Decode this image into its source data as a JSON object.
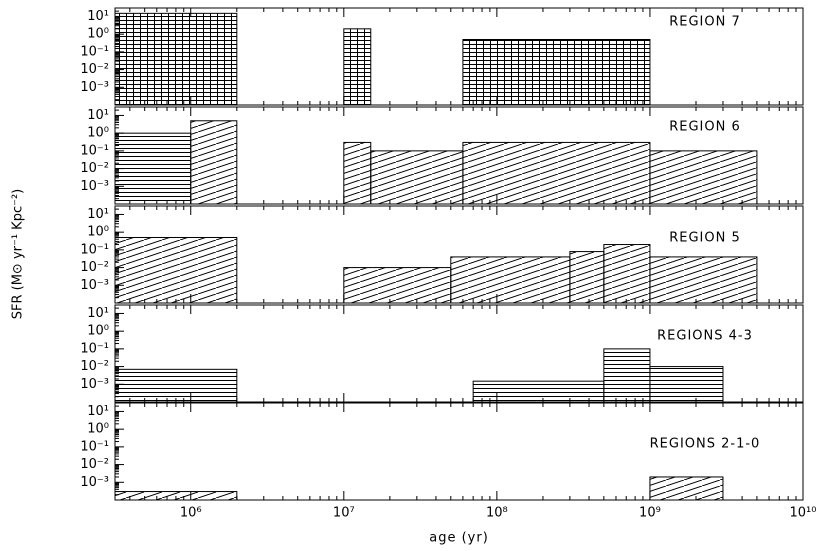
{
  "chart_data": [
    {
      "type": "bar",
      "title": "REGION 7",
      "xscale": "log",
      "yscale": "log",
      "xlim": [
        320000,
        10000000000
      ],
      "ylim": [
        0.0001,
        30
      ],
      "xticks": [
        1000000,
        10000000,
        100000000,
        1000000000,
        10000000000
      ],
      "yticks": [
        {
          "value": 10,
          "label": "10¹"
        },
        {
          "value": 1,
          "label": "10⁰"
        },
        {
          "value": 0.1,
          "label": "10⁻¹"
        },
        {
          "value": 0.01,
          "label": "10⁻²"
        },
        {
          "value": 0.001,
          "label": "10⁻³"
        }
      ],
      "bars": [
        {
          "from": 320000,
          "to": 2000000,
          "value": 15,
          "hatch": "grid"
        },
        {
          "from": 10000000,
          "to": 15000000,
          "value": 2,
          "hatch": "grid"
        },
        {
          "from": 60000000,
          "to": 1000000000,
          "value": 0.5,
          "hatch": "grid"
        }
      ]
    },
    {
      "type": "bar",
      "title": "REGION 6",
      "xscale": "log",
      "yscale": "log",
      "xlim": [
        320000,
        10000000000
      ],
      "ylim": [
        0.0001,
        30
      ],
      "xticks": [
        1000000,
        10000000,
        100000000,
        1000000000,
        10000000000
      ],
      "yticks": [
        {
          "value": 10,
          "label": "10¹"
        },
        {
          "value": 1,
          "label": "10⁰"
        },
        {
          "value": 0.1,
          "label": "10⁻¹"
        },
        {
          "value": 0.01,
          "label": "10⁻²"
        },
        {
          "value": 0.001,
          "label": "10⁻³"
        }
      ],
      "bars": [
        {
          "from": 320000,
          "to": 1000000,
          "value": 1,
          "hatch": "horizontal"
        },
        {
          "from": 1000000,
          "to": 2000000,
          "value": 5,
          "hatch": "diagonal"
        },
        {
          "from": 10000000,
          "to": 15000000,
          "value": 0.3,
          "hatch": "diagonal"
        },
        {
          "from": 15000000,
          "to": 60000000,
          "value": 0.1,
          "hatch": "diagonal"
        },
        {
          "from": 60000000,
          "to": 1000000000,
          "value": 0.3,
          "hatch": "diagonal"
        },
        {
          "from": 1000000000,
          "to": 5000000000,
          "value": 0.1,
          "hatch": "diagonal"
        }
      ]
    },
    {
      "type": "bar",
      "title": "REGION 5",
      "ylabel": "SFR (M⊙ yr⁻¹ Kpc⁻²)",
      "xscale": "log",
      "yscale": "log",
      "xlim": [
        320000,
        10000000000
      ],
      "ylim": [
        0.0001,
        30
      ],
      "xticks": [
        1000000,
        10000000,
        100000000,
        1000000000,
        10000000000
      ],
      "yticks": [
        {
          "value": 10,
          "label": "10¹"
        },
        {
          "value": 1,
          "label": "10⁰"
        },
        {
          "value": 0.1,
          "label": "10⁻¹"
        },
        {
          "value": 0.01,
          "label": "10⁻²"
        },
        {
          "value": 0.001,
          "label": "10⁻³"
        }
      ],
      "bars": [
        {
          "from": 320000,
          "to": 2000000,
          "value": 0.5,
          "hatch": "diagonal"
        },
        {
          "from": 10000000,
          "to": 50000000,
          "value": 0.01,
          "hatch": "diagonal"
        },
        {
          "from": 50000000,
          "to": 300000000,
          "value": 0.04,
          "hatch": "diagonal"
        },
        {
          "from": 300000000,
          "to": 500000000,
          "value": 0.08,
          "hatch": "diagonal"
        },
        {
          "from": 500000000,
          "to": 1000000000,
          "value": 0.2,
          "hatch": "diagonal"
        },
        {
          "from": 1000000000,
          "to": 5000000000,
          "value": 0.04,
          "hatch": "diagonal"
        }
      ]
    },
    {
      "type": "bar",
      "title": "REGIONS 4-3",
      "xscale": "log",
      "yscale": "log",
      "xlim": [
        320000,
        10000000000
      ],
      "ylim": [
        0.0001,
        30
      ],
      "xticks": [
        1000000,
        10000000,
        100000000,
        1000000000,
        10000000000
      ],
      "yticks": [
        {
          "value": 10,
          "label": "10¹"
        },
        {
          "value": 1,
          "label": "10⁰"
        },
        {
          "value": 0.1,
          "label": "10⁻¹"
        },
        {
          "value": 0.01,
          "label": "10⁻²"
        },
        {
          "value": 0.001,
          "label": "10⁻³"
        }
      ],
      "bars": [
        {
          "from": 320000,
          "to": 2000000,
          "value": 0.007,
          "hatch": "horizontal"
        },
        {
          "from": 70000000,
          "to": 500000000,
          "value": 0.0015,
          "hatch": "horizontal"
        },
        {
          "from": 500000000,
          "to": 1000000000,
          "value": 0.1,
          "hatch": "horizontal"
        },
        {
          "from": 1000000000,
          "to": 3000000000,
          "value": 0.01,
          "hatch": "horizontal"
        }
      ]
    },
    {
      "type": "bar",
      "title": "REGIONS 2-1-0",
      "xlabel": "age (yr)",
      "xscale": "log",
      "yscale": "log",
      "xlim": [
        320000,
        10000000000
      ],
      "ylim": [
        0.0001,
        30
      ],
      "xticks": [
        {
          "value": 1000000,
          "label": "10⁶"
        },
        {
          "value": 10000000,
          "label": "10⁷"
        },
        {
          "value": 100000000,
          "label": "10⁸"
        },
        {
          "value": 1000000000,
          "label": "10⁹"
        },
        {
          "value": 10000000000,
          "label": "10¹⁰"
        }
      ],
      "yticks": [
        {
          "value": 10,
          "label": "10¹"
        },
        {
          "value": 1,
          "label": "10⁰"
        },
        {
          "value": 0.1,
          "label": "10⁻¹"
        },
        {
          "value": 0.01,
          "label": "10⁻²"
        },
        {
          "value": 0.001,
          "label": "10⁻³"
        }
      ],
      "bars": [
        {
          "from": 320000,
          "to": 2000000,
          "value": 0.0003,
          "hatch": "diagonal"
        },
        {
          "from": 1000000000,
          "to": 3000000000,
          "value": 0.002,
          "hatch": "diagonal"
        }
      ]
    }
  ]
}
